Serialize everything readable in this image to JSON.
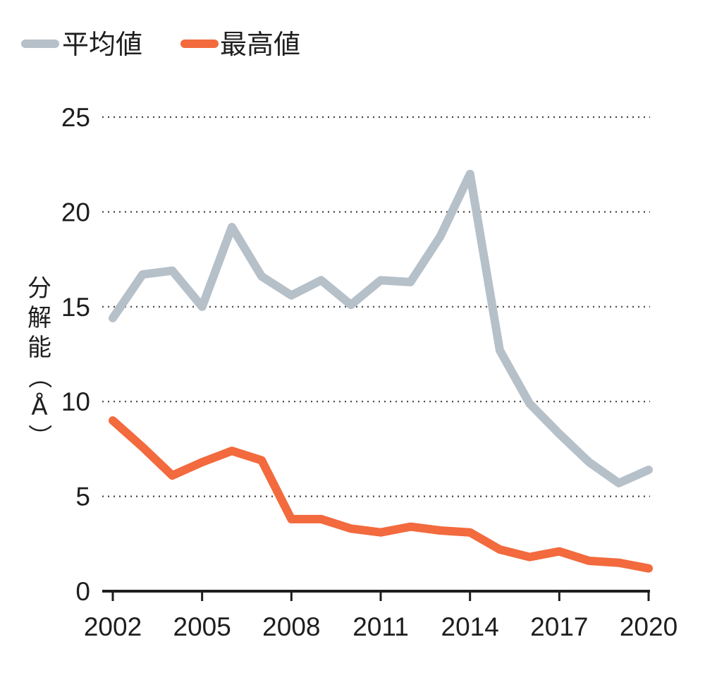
{
  "chart_data": {
    "type": "line",
    "title": "",
    "xlabel": "",
    "ylabel": "分解能（Å）",
    "x": [
      2002,
      2003,
      2004,
      2005,
      2006,
      2007,
      2008,
      2009,
      2010,
      2011,
      2012,
      2013,
      2014,
      2015,
      2016,
      2017,
      2018,
      2019,
      2020
    ],
    "xticks": [
      "2002",
      "2005",
      "2008",
      "2011",
      "2014",
      "2017",
      "2020"
    ],
    "xtick_values": [
      2002,
      2005,
      2008,
      2011,
      2014,
      2017,
      2020
    ],
    "xlim": [
      2002,
      2020
    ],
    "yticks": [
      "0",
      "5",
      "10",
      "15",
      "20",
      "25"
    ],
    "ytick_values": [
      0,
      5,
      10,
      15,
      20,
      25
    ],
    "ylim": [
      0,
      25
    ],
    "grid": "horizontal dotted",
    "legend_position": "top-left",
    "series": [
      {
        "name": "平均値",
        "color": "#b6c0c9",
        "values": [
          14.4,
          16.7,
          16.9,
          15.0,
          19.2,
          16.6,
          15.6,
          16.4,
          15.1,
          16.4,
          16.3,
          18.7,
          22.0,
          12.7,
          9.9,
          8.3,
          6.8,
          5.7,
          6.4
        ]
      },
      {
        "name": "最高値",
        "color": "#f26a3d",
        "values": [
          9.0,
          7.6,
          6.1,
          6.8,
          7.4,
          6.9,
          3.8,
          3.8,
          3.3,
          3.1,
          3.4,
          3.2,
          3.1,
          2.2,
          1.8,
          2.1,
          1.6,
          1.5,
          1.2
        ]
      }
    ]
  }
}
